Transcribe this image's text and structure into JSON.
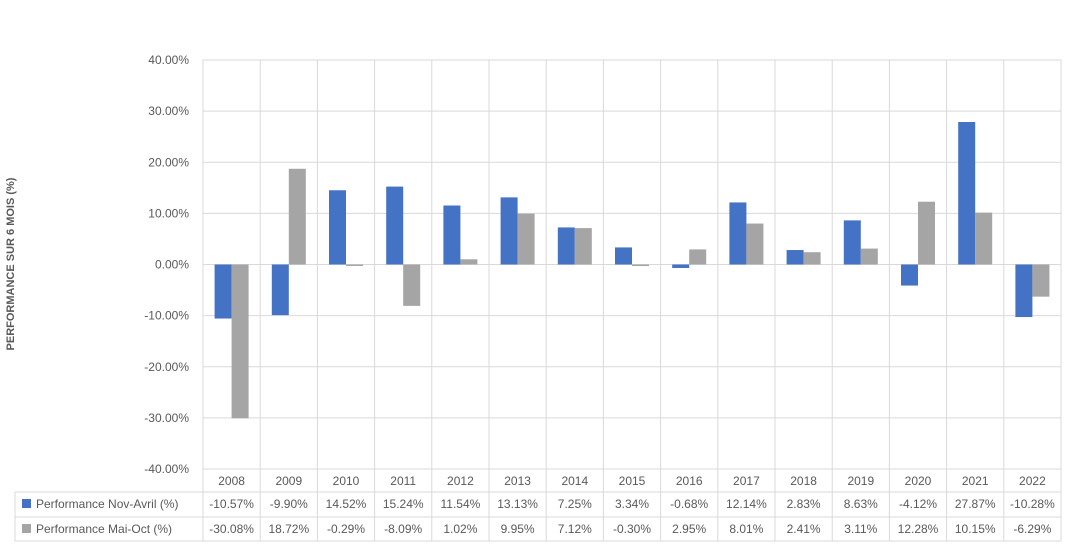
{
  "chart_data": {
    "type": "bar",
    "ylabel": "PERFORMANCE SUR 6 MOIS (%)",
    "ylim": [
      -40,
      40
    ],
    "y_ticks": [
      40,
      30,
      20,
      10,
      0,
      -10,
      -20,
      -30,
      -40
    ],
    "y_tick_labels": [
      "40.00%",
      "30.00%",
      "20.00%",
      "10.00%",
      "0.00%",
      "-10.00%",
      "-20.00%",
      "-30.00%",
      "-40.00%"
    ],
    "grid": true,
    "legend": "data-table",
    "categories": [
      "2008",
      "2009",
      "2010",
      "2011",
      "2012",
      "2013",
      "2014",
      "2015",
      "2016",
      "2017",
      "2018",
      "2019",
      "2020",
      "2021",
      "2022"
    ],
    "series": [
      {
        "name": "Performance Nov-Avril (%)",
        "color": "#4472C4",
        "values": [
          -10.57,
          -9.9,
          14.52,
          15.24,
          11.54,
          13.13,
          7.25,
          3.34,
          -0.68,
          12.14,
          2.83,
          8.63,
          -4.12,
          27.87,
          -10.28
        ],
        "labels": [
          "-10.57%",
          "-9.90%",
          "14.52%",
          "15.24%",
          "11.54%",
          "13.13%",
          "7.25%",
          "3.34%",
          "-0.68%",
          "12.14%",
          "2.83%",
          "8.63%",
          "-4.12%",
          "27.87%",
          "-10.28%"
        ]
      },
      {
        "name": "Performance Mai-Oct (%)",
        "color": "#A5A5A5",
        "values": [
          -30.08,
          18.72,
          -0.29,
          -8.09,
          1.02,
          9.95,
          7.12,
          -0.3,
          2.95,
          8.01,
          2.41,
          3.11,
          12.28,
          10.15,
          -6.29
        ],
        "labels": [
          "-30.08%",
          "18.72%",
          "-0.29%",
          "-8.09%",
          "1.02%",
          "9.95%",
          "7.12%",
          "-0.30%",
          "2.95%",
          "8.01%",
          "2.41%",
          "3.11%",
          "12.28%",
          "10.15%",
          "-6.29%"
        ]
      }
    ]
  }
}
